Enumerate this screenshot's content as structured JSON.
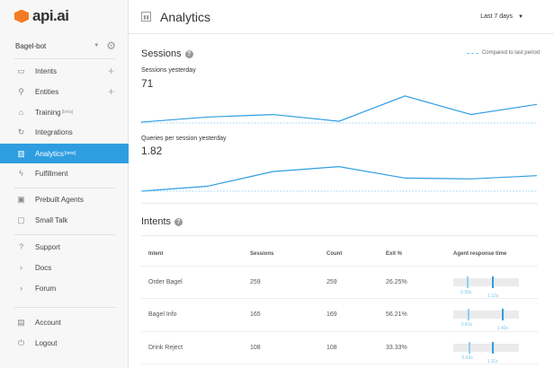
{
  "brand": {
    "name": "api.ai"
  },
  "agent": {
    "name": "Bagel-bot"
  },
  "sidebar": {
    "items": [
      {
        "label": "Intents",
        "icon": "chat-icon",
        "plus": true
      },
      {
        "label": "Entities",
        "icon": "hierarchy-icon",
        "plus": true
      },
      {
        "label": "Training",
        "badge": "[beta]",
        "icon": "graduation-cap-icon"
      },
      {
        "label": "Integrations",
        "icon": "sync-icon"
      },
      {
        "label": "Analytics",
        "badge": "[new]",
        "icon": "chart-icon",
        "active": true
      },
      {
        "label": "Fulfillment",
        "icon": "bolt-icon"
      },
      {
        "label": "Prebuilt Agents",
        "icon": "agents-icon"
      },
      {
        "label": "Small Talk",
        "icon": "small-talk-icon"
      },
      {
        "label": "Support",
        "icon": "help-icon"
      },
      {
        "label": "Docs",
        "icon": "chevron-right-icon"
      },
      {
        "label": "Forum",
        "icon": "chevron-right-icon"
      },
      {
        "label": "Account",
        "icon": "account-icon"
      },
      {
        "label": "Logout",
        "icon": "power-icon"
      }
    ]
  },
  "header": {
    "title": "Analytics",
    "period": "Last 7 days"
  },
  "sessions": {
    "title": "Sessions",
    "legend": "Compared to last period",
    "sessions_label": "Sessions yesterday",
    "sessions_value": "71",
    "qps_label": "Queries per session yesterday",
    "qps_value": "1.82"
  },
  "chart_data": [
    {
      "type": "line",
      "title": "Sessions yesterday",
      "series": [
        {
          "name": "current",
          "values": [
            1,
            7,
            10,
            2,
            32,
            10,
            22
          ]
        },
        {
          "name": "Compared to last period",
          "values": [
            0,
            0,
            0,
            0,
            0,
            0,
            0
          ]
        }
      ],
      "ylim": [
        0,
        34
      ],
      "color": "#2f9ee0"
    },
    {
      "type": "line",
      "title": "Queries per session yesterday",
      "series": [
        {
          "name": "current",
          "values": [
            0,
            6,
            24,
            30,
            16,
            15,
            19
          ]
        },
        {
          "name": "Compared to last period",
          "values": [
            0,
            0,
            0,
            0,
            0,
            0,
            0
          ]
        }
      ],
      "ylim": [
        0,
        34
      ],
      "color": "#2f9ee0"
    }
  ],
  "intents": {
    "title": "Intents",
    "columns": [
      "Intent",
      "Sessions",
      "Count",
      "Exit %",
      "Agent response time"
    ],
    "rows": [
      {
        "intent": "Order Bagel",
        "sessions": "259",
        "count": "259",
        "exit": "26.25%",
        "min": "0.39s",
        "avg": "1.12s"
      },
      {
        "intent": "Bagel Info",
        "sessions": "165",
        "count": "169",
        "exit": "56.21%",
        "min": "0.41s",
        "avg": "1.40s"
      },
      {
        "intent": "Drink Reject",
        "sessions": "108",
        "count": "108",
        "exit": "33.33%",
        "min": "0.43s",
        "avg": "1.11s"
      }
    ]
  }
}
